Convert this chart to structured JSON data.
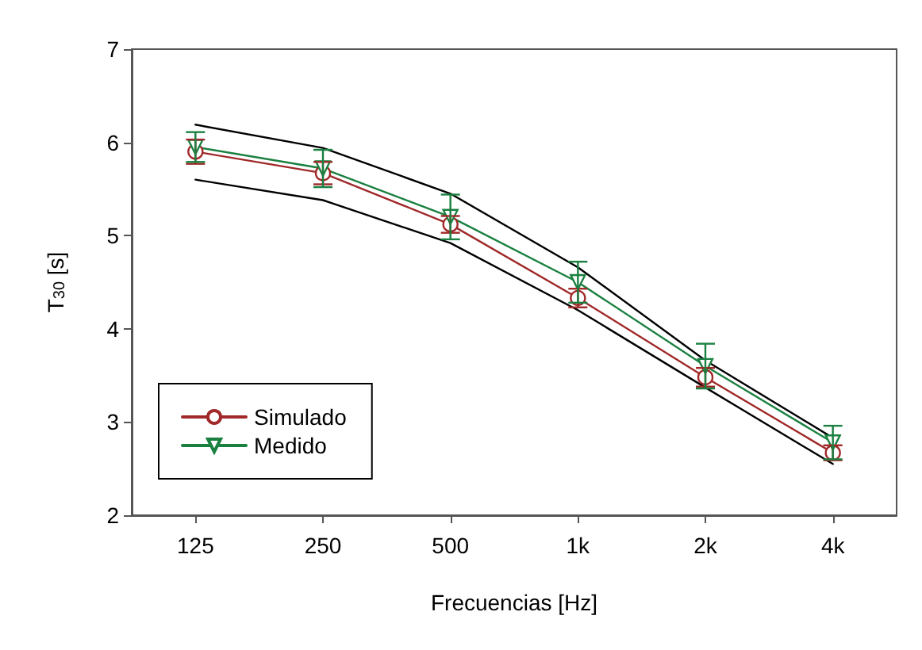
{
  "chart_data": {
    "type": "line",
    "xlabel": "Frecuencias [Hz]",
    "ylabel": "T$_{30}$ [s]",
    "categories": [
      "125",
      "250",
      "500",
      "1k",
      "2k",
      "4k"
    ],
    "ylim": [
      2,
      7
    ],
    "yticks": [
      2,
      3,
      4,
      5,
      6,
      7
    ],
    "grid": false,
    "legend": "bottom left",
    "line_style": "solid",
    "series": [
      {
        "name": "Simulado",
        "color": "#a02828",
        "marker": "circle",
        "values": [
          5.9,
          5.67,
          5.12,
          4.33,
          3.48,
          2.67
        ],
        "errors": [
          0.13,
          0.12,
          0.09,
          0.1,
          0.1,
          0.08
        ]
      },
      {
        "name": "Medido",
        "color": "#1a8040",
        "marker": "triangle",
        "values": [
          5.95,
          5.72,
          5.2,
          4.5,
          3.6,
          2.78
        ],
        "errors": [
          0.16,
          0.2,
          0.24,
          0.22,
          0.24,
          0.18
        ]
      },
      {
        "color": "#000000",
        "marker": "none",
        "values": [
          6.19,
          5.94,
          5.45,
          4.66,
          3.66,
          2.83
        ]
      },
      {
        "color": "#000000",
        "marker": "none",
        "values": [
          5.6,
          5.38,
          4.92,
          4.2,
          3.37,
          2.55
        ]
      }
    ]
  }
}
